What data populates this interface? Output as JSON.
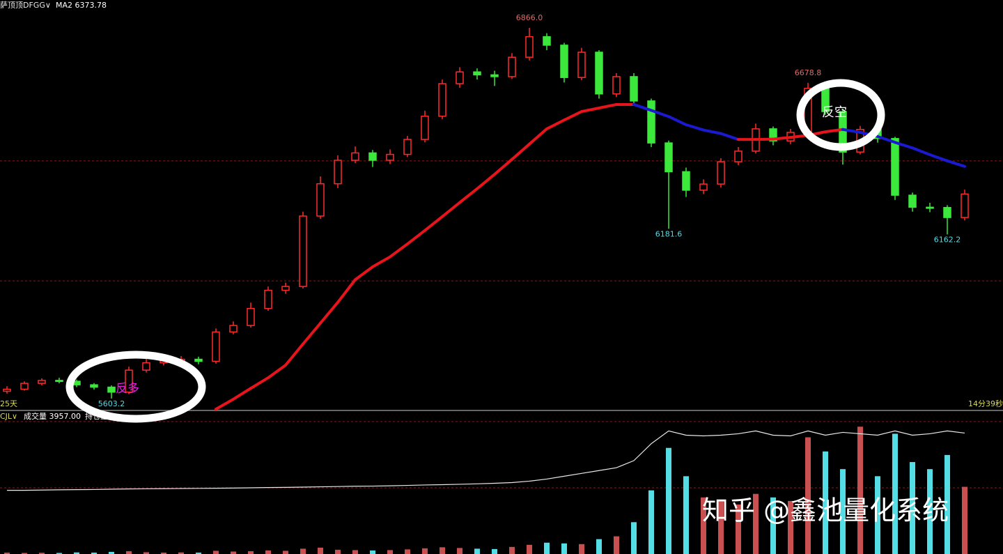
{
  "chart_data": {
    "type": "candlestick",
    "symbol": "萨顶顶DFGG∨",
    "ma_header": "MA2 6373.78",
    "left_footer": "25天",
    "right_footer": "14分39秒",
    "volume_indicator": "CJL∨",
    "volume_header": "成交量 3957.00",
    "oi_header": "持仓量",
    "annotation_long": "反多",
    "annotation_short": "反空",
    "watermark": "知乎 @鑫池量化系统",
    "up_color": "#ff2a2a",
    "down_color": "#3be83b",
    "ma_up_color": "#e8141c",
    "ma_down_color": "#1a1ad0",
    "volume_up_color": "#c85050",
    "volume_down_color": "#55dde6",
    "ylim": [
      5565,
      6961
    ],
    "gridlines": [
      6413,
      6004
    ],
    "open": [
      5628,
      5635,
      5655,
      5665,
      5662,
      5650,
      5642,
      5625,
      5700,
      5725,
      5732,
      5737,
      5730,
      5830,
      5852,
      5910,
      5972,
      5985,
      6225,
      6335,
      6415,
      6440,
      6415,
      6435,
      6486,
      6565,
      6676,
      6716,
      6706,
      6700,
      6766,
      6836,
      6807,
      6697,
      6783,
      6641,
      6700,
      6617,
      6474,
      6376,
      6313,
      6334,
      6410,
      6446,
      6522,
      6481,
      6510,
      6660,
      6581,
      6443,
      6520,
      6489,
      6296,
      6255,
      6254,
      6220
    ],
    "high": [
      5645,
      5662,
      5672,
      5674,
      5668,
      5656,
      5648,
      5712,
      5738,
      5745,
      5748,
      5746,
      5842,
      5866,
      5930,
      5985,
      5998,
      6240,
      6360,
      6432,
      6462,
      6450,
      6452,
      6498,
      6584,
      6690,
      6732,
      6728,
      6720,
      6780,
      6866.0,
      6848,
      6815,
      6798,
      6790,
      6712,
      6712,
      6625,
      6482,
      6390,
      6350,
      6422,
      6460,
      6540,
      6530,
      6522,
      6678.8,
      6668,
      6590,
      6532,
      6528,
      6495,
      6305,
      6270,
      6262,
      6315
    ],
    "low": [
      5620,
      5630,
      5648,
      5655,
      5642,
      5634,
      5603.2,
      5618,
      5692,
      5716,
      5724,
      5720,
      5722,
      5822,
      5845,
      5902,
      5960,
      5978,
      6215,
      6320,
      6405,
      6392,
      6402,
      6426,
      6476,
      6555,
      6662,
      6690,
      6668,
      6692,
      6755,
      6790,
      6680,
      6688,
      6625,
      6630,
      6600,
      6460,
      6181.6,
      6290,
      6300,
      6322,
      6398,
      6438,
      6466,
      6470,
      6500,
      6570,
      6400,
      6435,
      6475,
      6280,
      6240,
      6238,
      6162.2,
      6210
    ],
    "close": [
      5635,
      5655,
      5665,
      5662,
      5650,
      5642,
      5625,
      5700,
      5725,
      5732,
      5737,
      5730,
      5830,
      5852,
      5910,
      5972,
      5985,
      6225,
      6335,
      6415,
      6440,
      6415,
      6435,
      6486,
      6565,
      6676,
      6716,
      6706,
      6700,
      6766,
      6836,
      6807,
      6697,
      6783,
      6641,
      6700,
      6617,
      6474,
      6376,
      6313,
      6334,
      6410,
      6446,
      6522,
      6481,
      6510,
      6660,
      6581,
      6443,
      6520,
      6489,
      6296,
      6255,
      6254,
      6220,
      6300
    ],
    "high_labels": [
      null,
      null,
      null,
      null,
      null,
      null,
      null,
      null,
      null,
      null,
      null,
      null,
      null,
      null,
      null,
      null,
      null,
      null,
      null,
      null,
      null,
      null,
      null,
      null,
      null,
      null,
      null,
      null,
      null,
      null,
      "6866.0",
      null,
      null,
      null,
      null,
      null,
      null,
      null,
      null,
      null,
      null,
      null,
      null,
      null,
      null,
      null,
      "6678.8",
      null,
      null,
      null,
      null,
      null,
      null,
      null,
      null,
      null
    ],
    "low_labels": [
      null,
      null,
      null,
      null,
      null,
      null,
      "5603.2",
      null,
      null,
      null,
      null,
      null,
      null,
      null,
      null,
      null,
      null,
      null,
      null,
      null,
      null,
      null,
      null,
      null,
      null,
      null,
      null,
      null,
      null,
      null,
      null,
      null,
      null,
      null,
      null,
      null,
      null,
      null,
      "6181.6",
      null,
      null,
      null,
      null,
      null,
      null,
      null,
      null,
      null,
      null,
      null,
      null,
      null,
      null,
      null,
      "6162.2",
      null
    ],
    "ma": [
      null,
      null,
      null,
      null,
      null,
      null,
      null,
      null,
      null,
      null,
      null,
      null,
      5567,
      5601,
      5638,
      5674,
      5717,
      5789,
      5860,
      5931,
      6008,
      6052,
      6086,
      6130,
      6176,
      6223,
      6271,
      6318,
      6367,
      6418,
      6470,
      6522,
      6552,
      6581,
      6593,
      6605,
      6605,
      6585,
      6564,
      6536,
      6518,
      6506,
      6486,
      6486,
      6487,
      6493,
      6500,
      6512,
      6520,
      6510,
      6496,
      6476,
      6457,
      6434,
      6413,
      6394
    ],
    "volume_lim": [
      0,
      4000
    ],
    "volume_gridlines": [
      3744,
      1872
    ],
    "volume": [
      40,
      30,
      35,
      30,
      45,
      40,
      60,
      80,
      50,
      40,
      45,
      40,
      90,
      70,
      80,
      100,
      90,
      150,
      180,
      120,
      110,
      100,
      110,
      130,
      160,
      190,
      170,
      150,
      140,
      200,
      260,
      320,
      300,
      280,
      420,
      500,
      900,
      1800,
      3000,
      2200,
      1600,
      1500,
      1400,
      1700,
      1600,
      1500,
      3300,
      2900,
      2400,
      3600,
      2200,
      3400,
      2600,
      2400,
      2800,
      1900
    ],
    "oi_lim": [
      0,
      100
    ],
    "open_interest": [
      45,
      45,
      45.2,
      45.4,
      45.5,
      45.6,
      45.8,
      46,
      46.1,
      46.2,
      46.3,
      46.4,
      46.5,
      46.6,
      46.8,
      47,
      47.1,
      47.3,
      47.5,
      47.7,
      47.9,
      48,
      48.2,
      48.5,
      48.8,
      49,
      49.3,
      49.6,
      50,
      50.5,
      51.5,
      53,
      55,
      57,
      59,
      61,
      66,
      78,
      87,
      84,
      83.5,
      84,
      85,
      87,
      84,
      83.5,
      87,
      84,
      86,
      85,
      84,
      87,
      84,
      85,
      87,
      85.5
    ]
  }
}
